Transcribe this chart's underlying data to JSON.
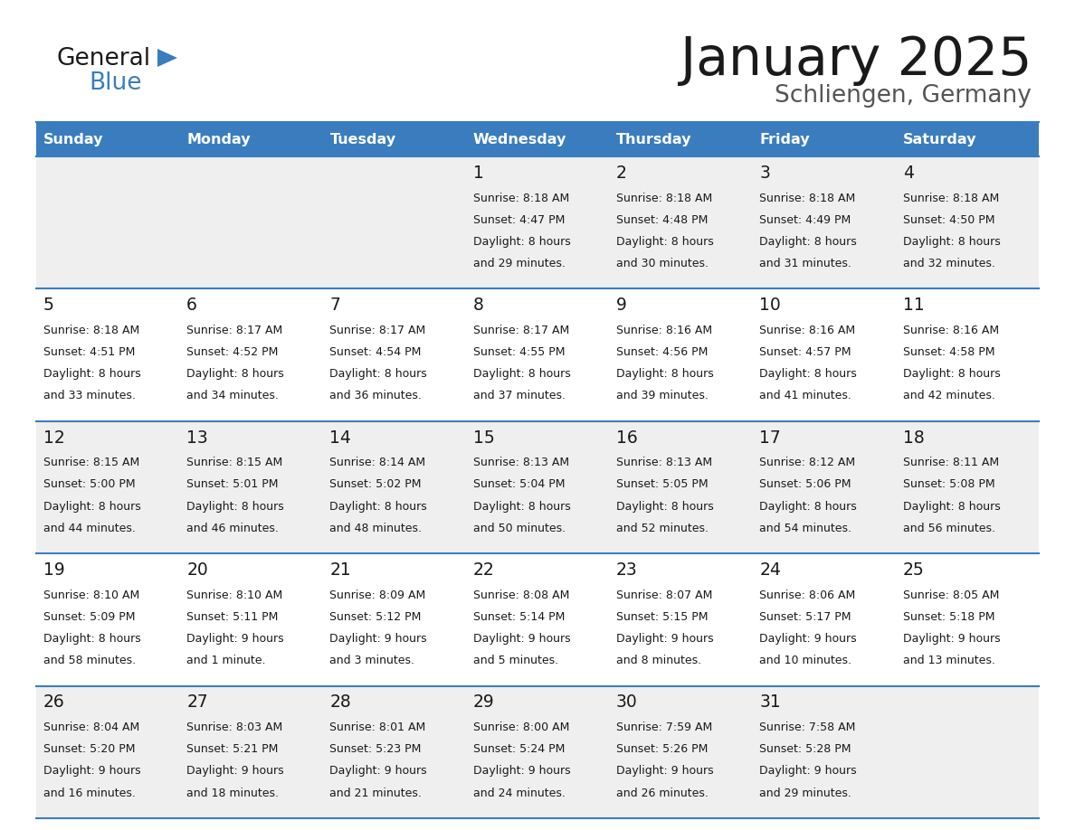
{
  "title": "January 2025",
  "subtitle": "Schliengen, Germany",
  "header_color": "#3a7dbf",
  "header_text_color": "#ffffff",
  "row_colors": [
    "#efefef",
    "#ffffff",
    "#efefef",
    "#ffffff",
    "#efefef"
  ],
  "separator_color": "#3a7dbf",
  "text_color": "#1a1a1a",
  "days_of_week": [
    "Sunday",
    "Monday",
    "Tuesday",
    "Wednesday",
    "Thursday",
    "Friday",
    "Saturday"
  ],
  "calendar_data": [
    [
      {
        "day": "",
        "sunrise": "",
        "sunset": "",
        "daylight": ""
      },
      {
        "day": "",
        "sunrise": "",
        "sunset": "",
        "daylight": ""
      },
      {
        "day": "",
        "sunrise": "",
        "sunset": "",
        "daylight": ""
      },
      {
        "day": "1",
        "sunrise": "8:18 AM",
        "sunset": "4:47 PM",
        "daylight": "8 hours and 29 minutes."
      },
      {
        "day": "2",
        "sunrise": "8:18 AM",
        "sunset": "4:48 PM",
        "daylight": "8 hours and 30 minutes."
      },
      {
        "day": "3",
        "sunrise": "8:18 AM",
        "sunset": "4:49 PM",
        "daylight": "8 hours and 31 minutes."
      },
      {
        "day": "4",
        "sunrise": "8:18 AM",
        "sunset": "4:50 PM",
        "daylight": "8 hours and 32 minutes."
      }
    ],
    [
      {
        "day": "5",
        "sunrise": "8:18 AM",
        "sunset": "4:51 PM",
        "daylight": "8 hours and 33 minutes."
      },
      {
        "day": "6",
        "sunrise": "8:17 AM",
        "sunset": "4:52 PM",
        "daylight": "8 hours and 34 minutes."
      },
      {
        "day": "7",
        "sunrise": "8:17 AM",
        "sunset": "4:54 PM",
        "daylight": "8 hours and 36 minutes."
      },
      {
        "day": "8",
        "sunrise": "8:17 AM",
        "sunset": "4:55 PM",
        "daylight": "8 hours and 37 minutes."
      },
      {
        "day": "9",
        "sunrise": "8:16 AM",
        "sunset": "4:56 PM",
        "daylight": "8 hours and 39 minutes."
      },
      {
        "day": "10",
        "sunrise": "8:16 AM",
        "sunset": "4:57 PM",
        "daylight": "8 hours and 41 minutes."
      },
      {
        "day": "11",
        "sunrise": "8:16 AM",
        "sunset": "4:58 PM",
        "daylight": "8 hours and 42 minutes."
      }
    ],
    [
      {
        "day": "12",
        "sunrise": "8:15 AM",
        "sunset": "5:00 PM",
        "daylight": "8 hours and 44 minutes."
      },
      {
        "day": "13",
        "sunrise": "8:15 AM",
        "sunset": "5:01 PM",
        "daylight": "8 hours and 46 minutes."
      },
      {
        "day": "14",
        "sunrise": "8:14 AM",
        "sunset": "5:02 PM",
        "daylight": "8 hours and 48 minutes."
      },
      {
        "day": "15",
        "sunrise": "8:13 AM",
        "sunset": "5:04 PM",
        "daylight": "8 hours and 50 minutes."
      },
      {
        "day": "16",
        "sunrise": "8:13 AM",
        "sunset": "5:05 PM",
        "daylight": "8 hours and 52 minutes."
      },
      {
        "day": "17",
        "sunrise": "8:12 AM",
        "sunset": "5:06 PM",
        "daylight": "8 hours and 54 minutes."
      },
      {
        "day": "18",
        "sunrise": "8:11 AM",
        "sunset": "5:08 PM",
        "daylight": "8 hours and 56 minutes."
      }
    ],
    [
      {
        "day": "19",
        "sunrise": "8:10 AM",
        "sunset": "5:09 PM",
        "daylight": "8 hours and 58 minutes."
      },
      {
        "day": "20",
        "sunrise": "8:10 AM",
        "sunset": "5:11 PM",
        "daylight": "9 hours and 1 minute."
      },
      {
        "day": "21",
        "sunrise": "8:09 AM",
        "sunset": "5:12 PM",
        "daylight": "9 hours and 3 minutes."
      },
      {
        "day": "22",
        "sunrise": "8:08 AM",
        "sunset": "5:14 PM",
        "daylight": "9 hours and 5 minutes."
      },
      {
        "day": "23",
        "sunrise": "8:07 AM",
        "sunset": "5:15 PM",
        "daylight": "9 hours and 8 minutes."
      },
      {
        "day": "24",
        "sunrise": "8:06 AM",
        "sunset": "5:17 PM",
        "daylight": "9 hours and 10 minutes."
      },
      {
        "day": "25",
        "sunrise": "8:05 AM",
        "sunset": "5:18 PM",
        "daylight": "9 hours and 13 minutes."
      }
    ],
    [
      {
        "day": "26",
        "sunrise": "8:04 AM",
        "sunset": "5:20 PM",
        "daylight": "9 hours and 16 minutes."
      },
      {
        "day": "27",
        "sunrise": "8:03 AM",
        "sunset": "5:21 PM",
        "daylight": "9 hours and 18 minutes."
      },
      {
        "day": "28",
        "sunrise": "8:01 AM",
        "sunset": "5:23 PM",
        "daylight": "9 hours and 21 minutes."
      },
      {
        "day": "29",
        "sunrise": "8:00 AM",
        "sunset": "5:24 PM",
        "daylight": "9 hours and 24 minutes."
      },
      {
        "day": "30",
        "sunrise": "7:59 AM",
        "sunset": "5:26 PM",
        "daylight": "9 hours and 26 minutes."
      },
      {
        "day": "31",
        "sunrise": "7:58 AM",
        "sunset": "5:28 PM",
        "daylight": "9 hours and 29 minutes."
      },
      {
        "day": "",
        "sunrise": "",
        "sunset": "",
        "daylight": ""
      }
    ]
  ],
  "logo_general_color": "#1a1a1a",
  "logo_blue_color": "#3a7dbf",
  "logo_triangle_color": "#3a7dbf"
}
